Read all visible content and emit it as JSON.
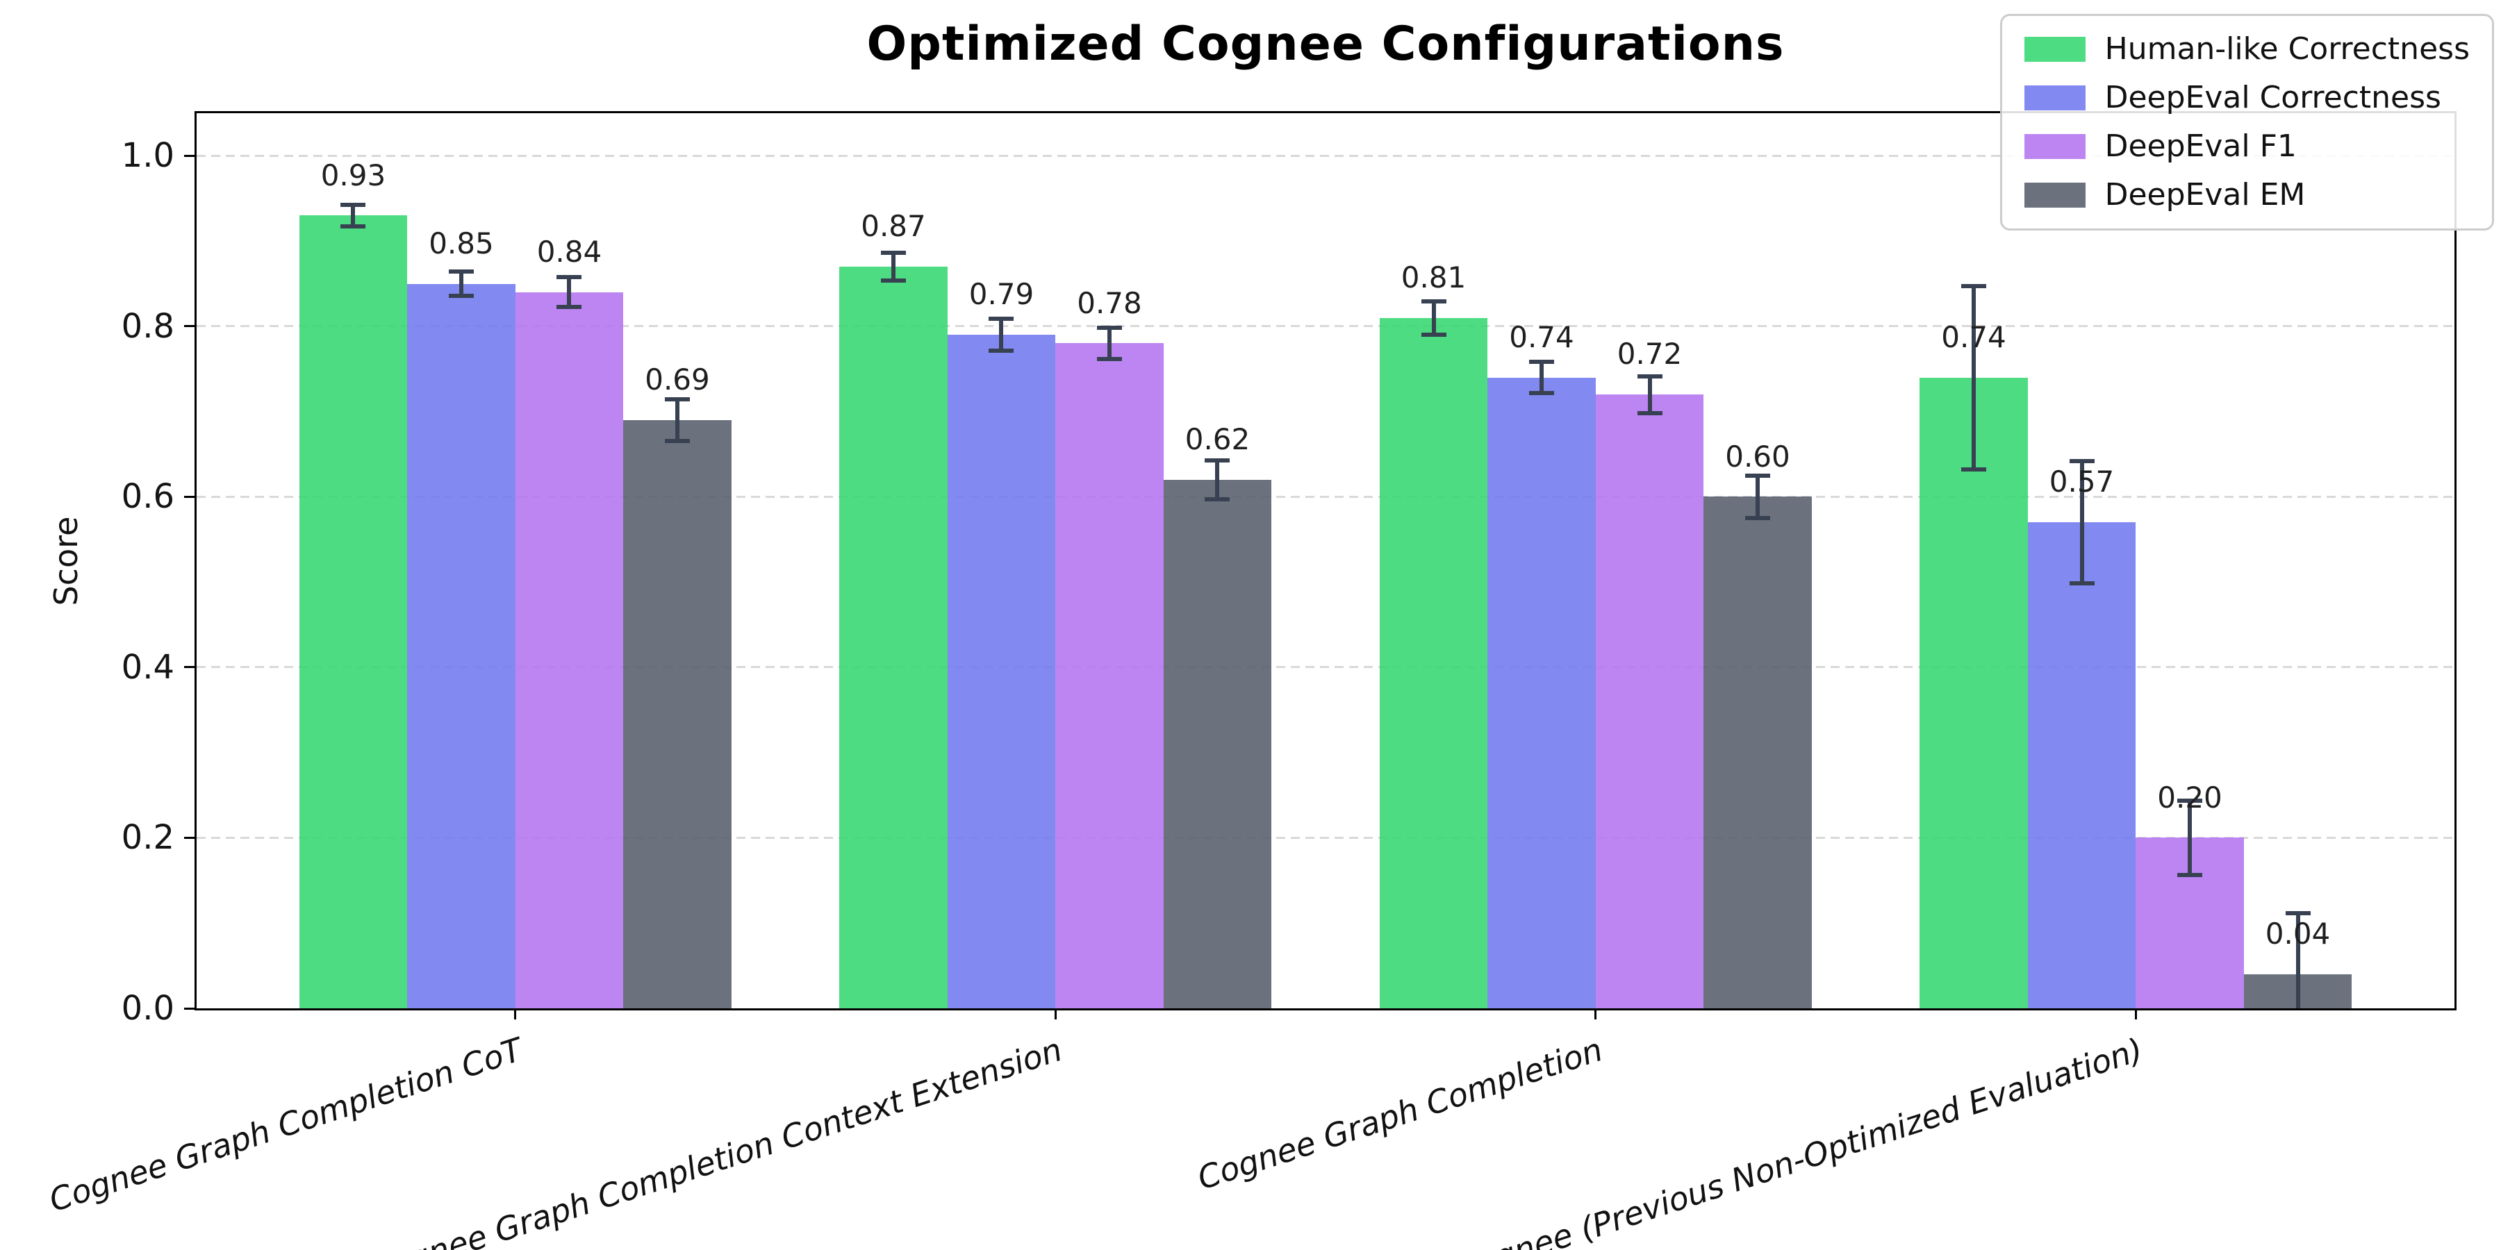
{
  "chart_data": {
    "type": "bar",
    "title": "Optimized Cognee Configurations",
    "xlabel": "",
    "ylabel": "Score",
    "ylim": [
      0,
      1.05
    ],
    "yticks": [
      0.0,
      0.2,
      0.4,
      0.6,
      0.8,
      1.0
    ],
    "grid": "horizontal dashed",
    "legend_position": "upper right",
    "categories": [
      "Cognee Graph Completion CoT",
      "Cognee Graph Completion Context Extension",
      "Cognee Graph Completion",
      "Cognee (Previous Non-Optimized Evaluation)"
    ],
    "series": [
      {
        "name": "Human-like Correctness",
        "color": "#35d771",
        "values": [
          0.93,
          0.87,
          0.81,
          0.74
        ],
        "errors": [
          0.015,
          0.019,
          0.022,
          0.11
        ]
      },
      {
        "name": "DeepEval Correctness",
        "color": "#7179ee",
        "values": [
          0.85,
          0.79,
          0.74,
          0.57
        ],
        "errors": [
          0.017,
          0.021,
          0.021,
          0.074
        ]
      },
      {
        "name": "DeepEval F1",
        "color": "#b474f0",
        "values": [
          0.84,
          0.78,
          0.72,
          0.2
        ],
        "errors": [
          0.02,
          0.021,
          0.024,
          0.046
        ]
      },
      {
        "name": "DeepEval EM",
        "color": "#575e6c",
        "values": [
          0.69,
          0.62,
          0.6,
          0.04
        ],
        "errors": [
          0.027,
          0.025,
          0.027,
          0.074
        ]
      }
    ],
    "bar_label_format": "2-decimals",
    "styles": {
      "error_bar_color": "#374151",
      "grid_color": "#d9d9d9",
      "spine_color": "#000000",
      "background": "#ffffff"
    }
  }
}
